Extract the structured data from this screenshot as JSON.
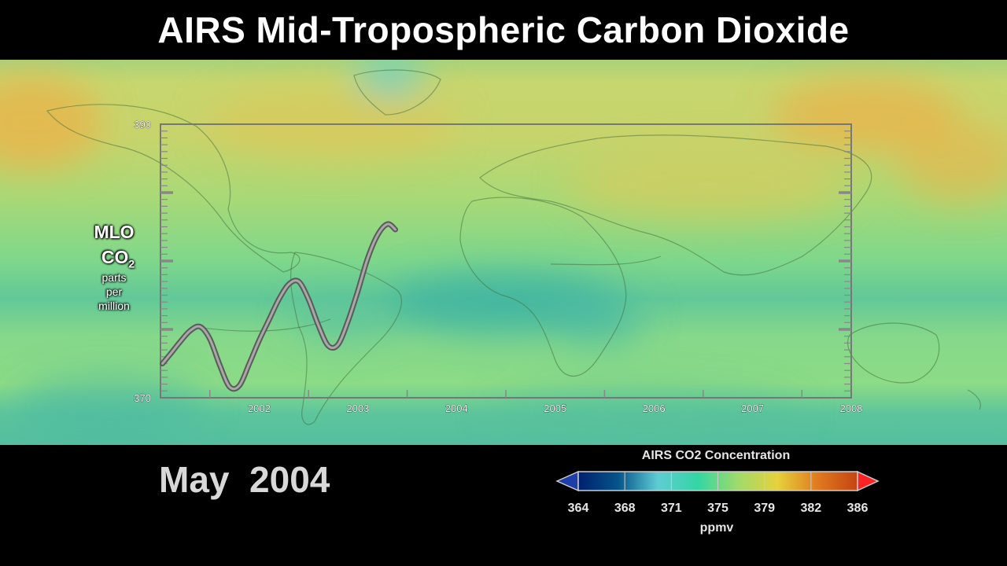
{
  "title": "AIRS Mid-Tropospheric Carbon Dioxide",
  "date_label": "May  2004",
  "y_axis": {
    "line1": "MLO",
    "line2": "CO",
    "line2_sub": "2",
    "unit_lines": [
      "parts",
      "per",
      "million"
    ]
  },
  "colorbar": {
    "title": "AIRS CO2 Concentration",
    "unit": "ppmv",
    "ticks": [
      "364",
      "368",
      "371",
      "375",
      "379",
      "382",
      "386"
    ],
    "colors": [
      "#00206e",
      "#06548a",
      "#5fcdd4",
      "#33d6a4",
      "#9fdb6a",
      "#e6d13b",
      "#e07a1e",
      "#c44414"
    ],
    "arrow_low_color": "#1f3fa8",
    "arrow_high_color": "#ff2424"
  },
  "chart_data": {
    "type": "line",
    "title": "",
    "xlabel": "",
    "ylabel": "MLO CO2 parts per million",
    "ylim": [
      370,
      390
    ],
    "y_ticks": [
      "370",
      "390"
    ],
    "xlim": [
      2001.5,
      2008.5
    ],
    "x_ticks": [
      "2002",
      "2003",
      "2004",
      "2005",
      "2006",
      "2007",
      "2008"
    ],
    "series": [
      {
        "x": [
          2001.52,
          2001.6,
          2001.7,
          2001.8,
          2001.9,
          2002.0,
          2002.1,
          2002.2,
          2002.3,
          2002.4,
          2002.5,
          2002.6,
          2002.7,
          2002.8,
          2002.9,
          2003.0,
          2003.1,
          2003.2,
          2003.3,
          2003.4,
          2003.5,
          2003.6,
          2003.7,
          2003.8,
          2003.88
        ],
        "values": [
          372.5,
          373.2,
          374.1,
          374.9,
          375.2,
          374.3,
          372.4,
          370.8,
          370.9,
          372.5,
          374.2,
          375.7,
          377.2,
          378.3,
          378.5,
          377.2,
          375.3,
          373.8,
          373.9,
          375.6,
          377.8,
          380.2,
          381.9,
          382.7,
          382.3
        ]
      }
    ]
  }
}
